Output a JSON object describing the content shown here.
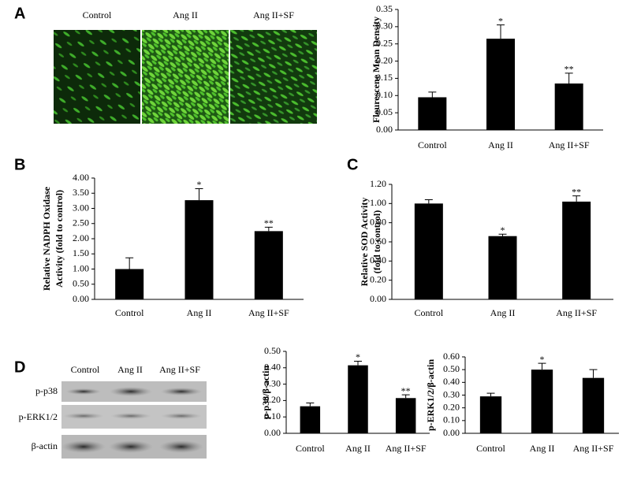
{
  "figure": {
    "panel_labels": [
      "A",
      "B",
      "C",
      "D"
    ],
    "micrograph_labels": [
      "Control",
      "Ang II",
      "Ang II+SF"
    ],
    "blot_lanes": [
      "Control",
      "Ang II",
      "Ang II+SF"
    ],
    "blot_rows": [
      "p-p38",
      "p-ERK1/2",
      "β-actin"
    ]
  },
  "chart_data": [
    {
      "type": "bar",
      "ylabel": [
        "Flourescene Mean Density"
      ],
      "categories": [
        "Control",
        "Ang II",
        "Ang II+SF"
      ],
      "values": [
        0.095,
        0.265,
        0.135
      ],
      "errors": [
        0.015,
        0.04,
        0.03
      ],
      "annotations": [
        null,
        "*",
        "**"
      ],
      "color": "#000000",
      "ylim": [
        0,
        0.35
      ],
      "yticks": [
        {
          "value": 0,
          "label": "0.00"
        },
        {
          "value": 0.05,
          "label": "0.05"
        },
        {
          "value": 0.1,
          "label": "0.10"
        },
        {
          "value": 0.15,
          "label": "0.15"
        },
        {
          "value": 0.2,
          "label": "0.20"
        },
        {
          "value": 0.25,
          "label": "0.25"
        },
        {
          "value": 0.3,
          "label": "0.30"
        },
        {
          "value": 0.35,
          "label": "0.35"
        }
      ]
    },
    {
      "type": "bar",
      "ylabel": [
        "Relative NADPH Oxidase",
        "Activity (fold to control)"
      ],
      "categories": [
        "Control",
        "Ang II",
        "Ang II+SF"
      ],
      "values": [
        1.0,
        3.27,
        2.25
      ],
      "errors": [
        0.37,
        0.38,
        0.13
      ],
      "annotations": [
        null,
        "*",
        "**"
      ],
      "color": "#000000",
      "ylim": [
        0,
        4
      ],
      "yticks": [
        {
          "value": 0,
          "label": "0.00"
        },
        {
          "value": 0.5,
          "label": "0.50"
        },
        {
          "value": 1,
          "label": "1.00"
        },
        {
          "value": 1.5,
          "label": "1.50"
        },
        {
          "value": 2,
          "label": "2.00"
        },
        {
          "value": 2.5,
          "label": "2.50"
        },
        {
          "value": 3,
          "label": "3.00"
        },
        {
          "value": 3.5,
          "label": "3.50"
        },
        {
          "value": 4,
          "label": "4.00"
        }
      ]
    },
    {
      "type": "bar",
      "ylabel": [
        "Relative SOD Activity",
        "(fold to control)"
      ],
      "categories": [
        "Control",
        "Ang II",
        "Ang II+SF"
      ],
      "values": [
        1.0,
        0.66,
        1.02
      ],
      "errors": [
        0.04,
        0.02,
        0.06
      ],
      "annotations": [
        null,
        "*",
        "**"
      ],
      "color": "#000000",
      "ylim": [
        0,
        1.2
      ],
      "yticks": [
        {
          "value": 0,
          "label": "0.00"
        },
        {
          "value": 0.2,
          "label": "0.20"
        },
        {
          "value": 0.4,
          "label": "0.40"
        },
        {
          "value": 0.6,
          "label": "0.60"
        },
        {
          "value": 0.8,
          "label": "0.80"
        },
        {
          "value": 1,
          "label": "1.00"
        },
        {
          "value": 1.2,
          "label": "1.20"
        }
      ]
    },
    {
      "type": "bar",
      "ylabel": [
        "p-p38/β-actin"
      ],
      "categories": [
        "Control",
        "Ang II",
        "Ang II+SF"
      ],
      "values": [
        0.165,
        0.415,
        0.215
      ],
      "errors": [
        0.02,
        0.025,
        0.02
      ],
      "annotations": [
        null,
        "*",
        "**"
      ],
      "color": "#000000",
      "ylim": [
        0,
        0.5
      ],
      "yticks": [
        {
          "value": 0,
          "label": "0.00"
        },
        {
          "value": 0.1,
          "label": "0.10"
        },
        {
          "value": 0.2,
          "label": "0.20"
        },
        {
          "value": 0.3,
          "label": "0.30"
        },
        {
          "value": 0.4,
          "label": "0.40"
        },
        {
          "value": 0.5,
          "label": "0.50"
        }
      ]
    },
    {
      "type": "bar",
      "ylabel": [
        "p-ERK1/2/β-actin"
      ],
      "categories": [
        "Control",
        "Ang II",
        "Ang II+SF"
      ],
      "values": [
        0.29,
        0.5,
        0.435
      ],
      "errors": [
        0.025,
        0.05,
        0.065
      ],
      "annotations": [
        null,
        "*",
        null
      ],
      "color": "#000000",
      "ylim": [
        0,
        0.6
      ],
      "yticks": [
        {
          "value": 0,
          "label": "0.00"
        },
        {
          "value": 0.1,
          "label": "0.10"
        },
        {
          "value": 0.2,
          "label": "0.20"
        },
        {
          "value": 0.3,
          "label": "0.30"
        },
        {
          "value": 0.4,
          "label": "0.40"
        },
        {
          "value": 0.5,
          "label": "0.50"
        },
        {
          "value": 0.6,
          "label": "0.60"
        }
      ]
    }
  ]
}
